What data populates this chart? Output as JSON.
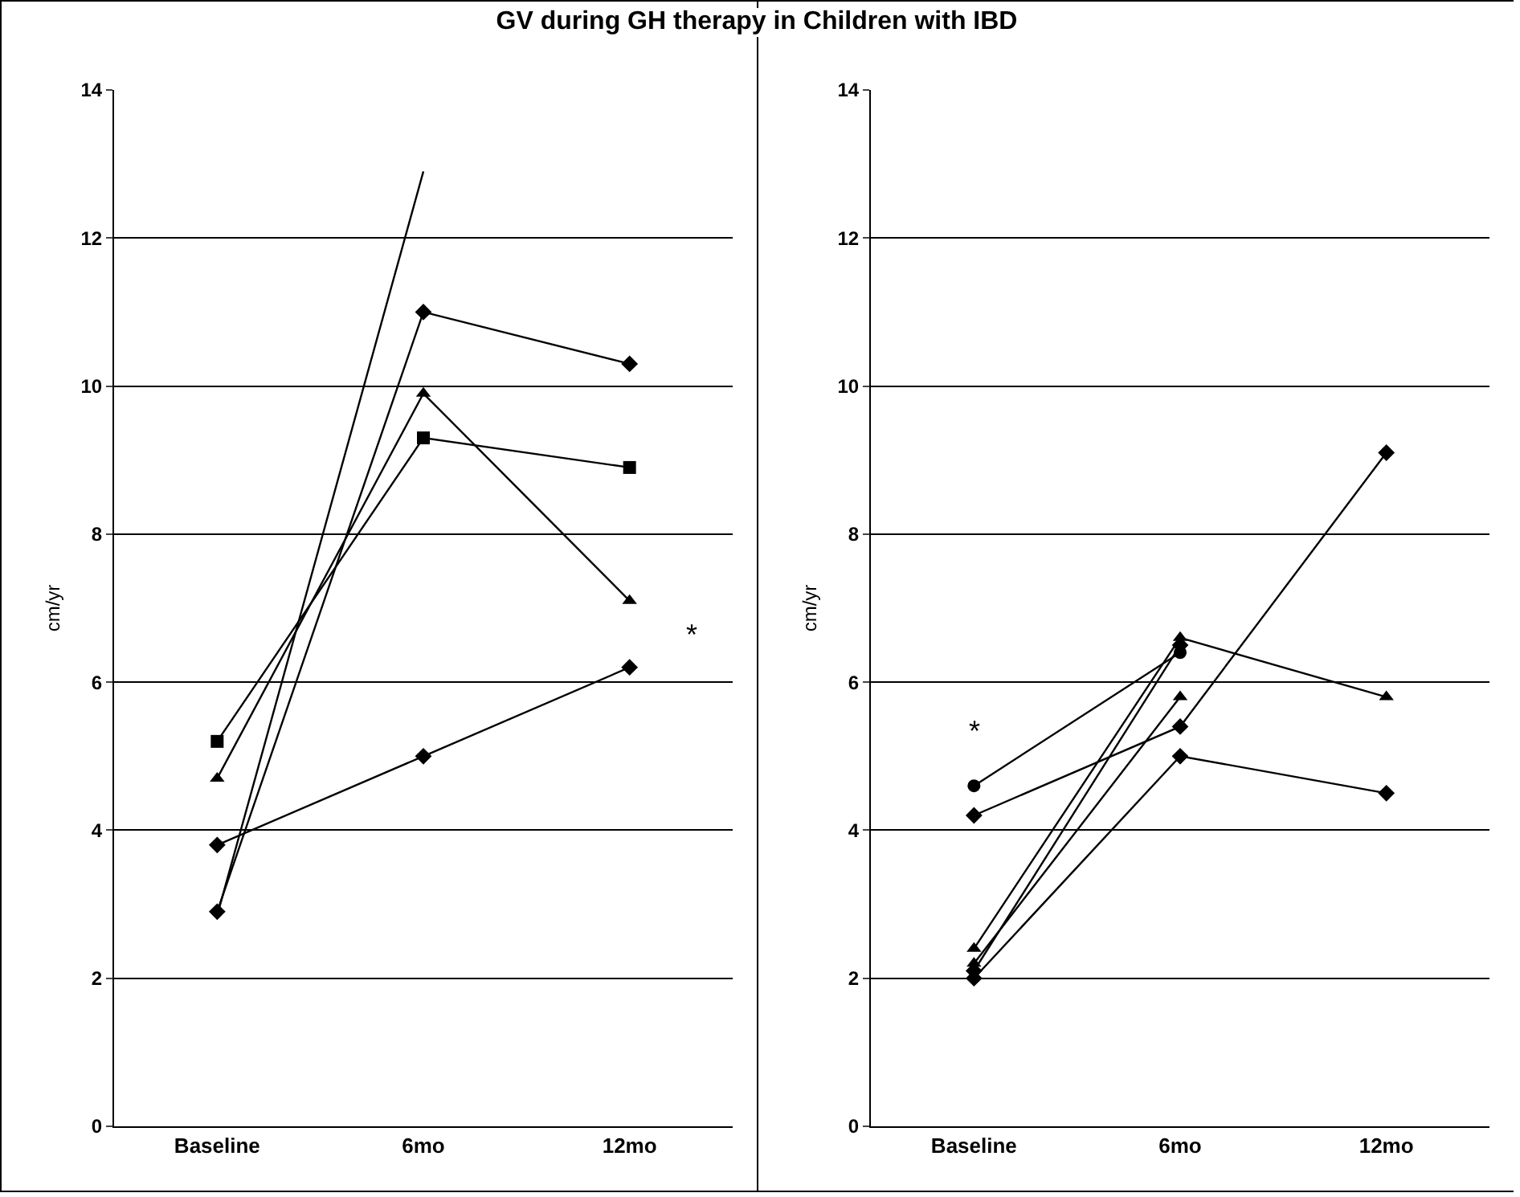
{
  "chart_data": [
    {
      "type": "line",
      "title": "GV during GH therapy in Children with IBD",
      "ylabel": "cm/yr",
      "categories": [
        "Baseline",
        "6mo",
        "12mo"
      ],
      "ylim": [
        0,
        14
      ],
      "yticks": [
        0,
        2,
        4,
        6,
        8,
        10,
        12,
        14
      ],
      "grid": "y",
      "annotations": [
        "*"
      ],
      "series": [
        {
          "color": "#000000",
          "marker": "none",
          "values": [
            2.85,
            12.9,
            null
          ]
        },
        {
          "color": "#000000",
          "marker": "diamond",
          "values": [
            2.9,
            11.0,
            10.3
          ]
        },
        {
          "color": "#000000",
          "marker": "triangle",
          "values": [
            4.7,
            9.9,
            7.1
          ]
        },
        {
          "color": "#000000",
          "marker": "square",
          "values": [
            5.2,
            9.3,
            8.9
          ]
        },
        {
          "color": "#000000",
          "marker": "diamond",
          "values": [
            3.8,
            5.0,
            6.2
          ]
        }
      ]
    },
    {
      "type": "line",
      "ylabel": "cm/yr",
      "categories": [
        "Baseline",
        "6mo",
        "12mo"
      ],
      "ylim": [
        0,
        14
      ],
      "yticks": [
        0,
        2,
        4,
        6,
        8,
        10,
        12,
        14
      ],
      "grid": "y",
      "annotations": [
        "*"
      ],
      "series": [
        {
          "color": "#000000",
          "marker": "circle",
          "values": [
            4.6,
            6.4,
            null
          ]
        },
        {
          "color": "#000000",
          "marker": "diamond",
          "values": [
            4.2,
            5.4,
            9.1
          ]
        },
        {
          "color": "#000000",
          "marker": "triangle",
          "values": [
            2.4,
            6.6,
            5.8
          ]
        },
        {
          "color": "#000000",
          "marker": "triangle",
          "values": [
            2.2,
            5.8,
            null
          ]
        },
        {
          "color": "#000000",
          "marker": "diamond",
          "values": [
            2.1,
            6.5,
            null
          ]
        },
        {
          "color": "#000000",
          "marker": "diamond",
          "values": [
            2.0,
            5.0,
            4.5
          ]
        }
      ]
    }
  ]
}
